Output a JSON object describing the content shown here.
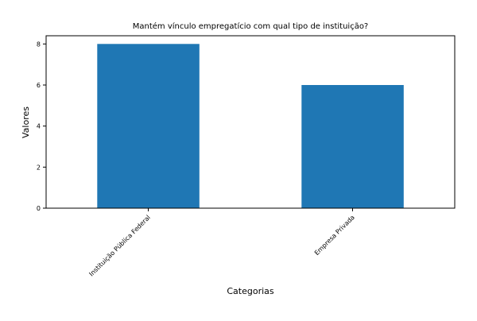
{
  "chart_data": {
    "type": "bar",
    "title": "Mantém vínculo empregatício com qual tipo de instituição?",
    "xlabel": "Categorias",
    "ylabel": "Valores",
    "categories": [
      "Instituição Pública Federal",
      "Empresa Privada"
    ],
    "values": [
      8,
      6
    ],
    "ylim": [
      0,
      8.4
    ],
    "yticks": [
      0,
      2,
      4,
      6,
      8
    ],
    "grid": false,
    "legend": "none",
    "bar_color": "#1f77b4",
    "x_tick_rotation_deg": 45
  }
}
